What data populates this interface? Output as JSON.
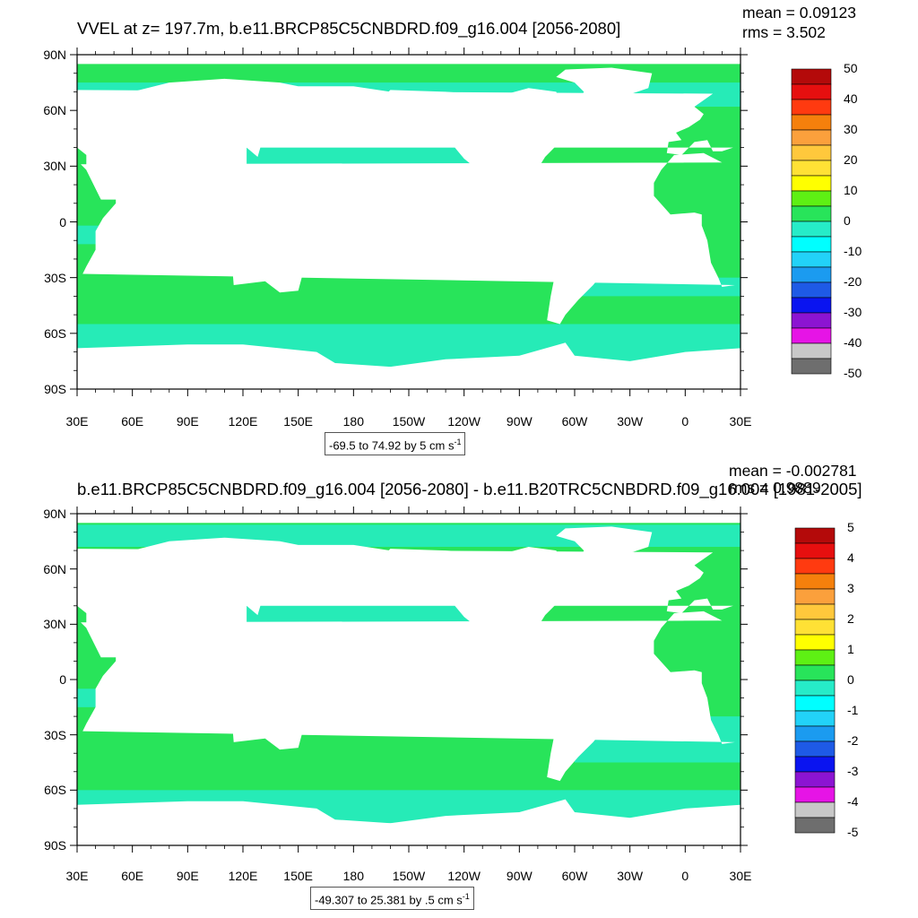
{
  "panels": [
    {
      "title": "VVEL at z= 197.7m, b.e11.BRCP85C5CNBDRD.f09_g16.004 [2056-2080]",
      "mean": "mean = 0.09123",
      "rms": "rms = 3.502",
      "range": "-69.5 to 74.92 by 5 cm s",
      "range_exp": "-1",
      "colorbar_labels": [
        "50",
        "40",
        "30",
        "20",
        "10",
        "0",
        "-10",
        "-20",
        "-30",
        "-40",
        "-50"
      ]
    },
    {
      "title": "b.e11.BRCP85C5CNBDRD.f09_g16.004 [2056-2080] - b.e11.B20TRC5CNBDRD.f09_g16.004 [1981-2005]",
      "mean": "mean = -0.002781",
      "rms": "rms = 0.9889",
      "range": "-49.307 to 25.381 by .5 cm s",
      "range_exp": "-1",
      "colorbar_labels": [
        "5",
        "4",
        "3",
        "2",
        "1",
        "0",
        "-1",
        "-2",
        "-3",
        "-4",
        "-5"
      ]
    }
  ],
  "lat_ticks": [
    "90N",
    "60N",
    "30N",
    "0",
    "30S",
    "60S",
    "90S"
  ],
  "lon_ticks": [
    "30E",
    "60E",
    "90E",
    "120E",
    "150E",
    "180",
    "150W",
    "120W",
    "90W",
    "60W",
    "30W",
    "0",
    "30E"
  ],
  "colors": {
    "ocean_base": "#28e45a",
    "ocean_neg": "#26ecc8",
    "land": "#ffffff",
    "colorbar": [
      "#b40a0a",
      "#e60f0f",
      "#ff3a10",
      "#f5800c",
      "#fba03c",
      "#ffc83c",
      "#ffe135",
      "#ffff00",
      "#5ef014",
      "#28e45a",
      "#26ecc8",
      "#00ffff",
      "#22d2f8",
      "#1b9bf0",
      "#1e5ae6",
      "#0a14f0",
      "#8c14d2",
      "#e614e6",
      "#c8c8c8",
      "#6e6e6e"
    ]
  }
}
